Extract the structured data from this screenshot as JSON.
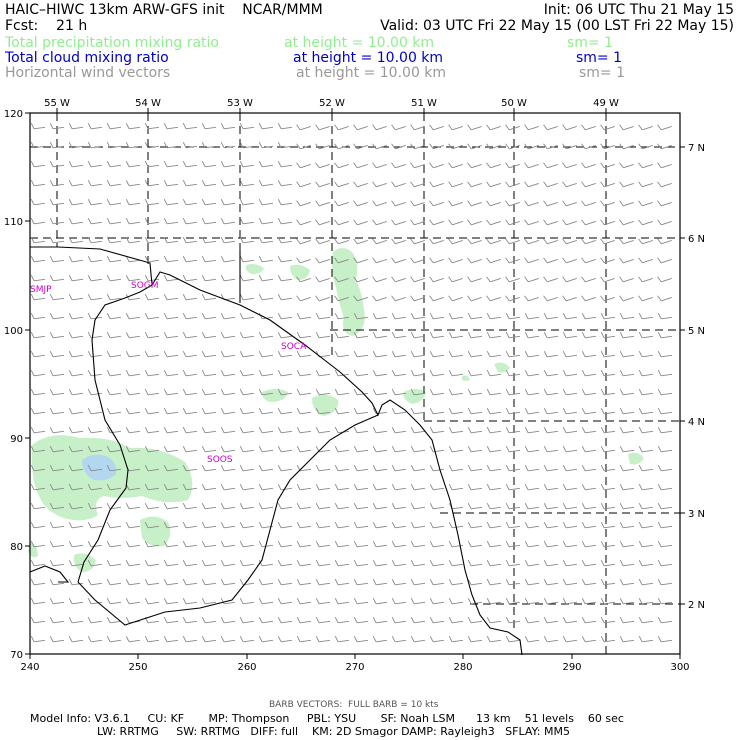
{
  "header": {
    "line1_left": "HAIC–HIWC 13km ARW-GFS init    NCAR/MMM",
    "line1_right": "Init: 06 UTC Thu 21 May 15",
    "line2_left": "Fcst:    21 h",
    "line2_right": "Valid: 03 UTC Fri 22 May 15 (00 LST Fri 22 May 15)",
    "fields": [
      {
        "name": "Total precipitation mixing ratio",
        "height": "at height = 10.00 km",
        "sm": "sm= 1",
        "color": "#90ee90"
      },
      {
        "name": "Total cloud mixing ratio",
        "height": "at height = 10.00 km",
        "sm": "sm= 1",
        "color": "#0000cc"
      },
      {
        "name": "Horizontal wind vectors",
        "height": "at height = 10.00 km",
        "sm": "sm= 1",
        "color": "#999999"
      }
    ]
  },
  "map": {
    "top_ticks": [
      "55 W",
      "54 W",
      "53 W",
      "52 W",
      "51 W",
      "50 W",
      "49 W"
    ],
    "right_ticks": [
      "7 N",
      "6 N",
      "5 N",
      "4 N",
      "3 N",
      "2 N"
    ],
    "left_ticks": [
      "120",
      "110",
      "100",
      "90",
      "80",
      "70"
    ],
    "bottom_ticks": [
      "240",
      "250",
      "260",
      "270",
      "280",
      "290",
      "300"
    ],
    "stations": [
      "SMJP",
      "SOGM",
      "SOCA",
      "SOOS"
    ],
    "station_color": "#cc00cc",
    "precip_color": "#c8f0c8",
    "cloud_color": "#b4d7f0",
    "barb_color": "#888888"
  },
  "footer": {
    "barb_note": "BARB VECTORS:  FULL BARB = 10 kts",
    "line1": "Model Info: V3.6.1     CU: KF       MP: Thompson     PBL: YSU       SF: Noah LSM      13 km    51 levels    60 sec",
    "line2": "LW: RRTMG     SW: RRTMG   DIFF: full    KM: 2D Smagor DAMP: Rayleigh3   SFLAY: MM5"
  }
}
